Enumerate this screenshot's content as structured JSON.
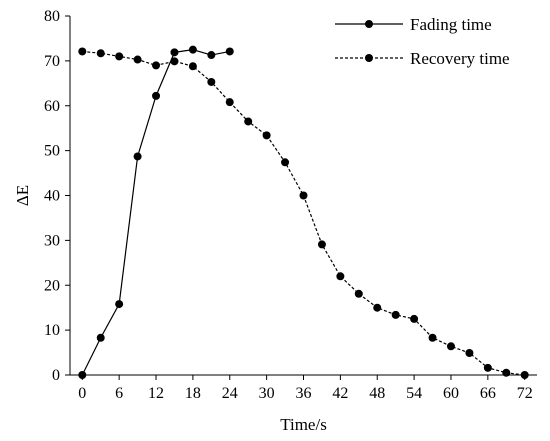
{
  "chart_data": {
    "type": "line",
    "title": "",
    "xlabel": "Time/s",
    "ylabel": "ΔE",
    "xlim": [
      -2,
      74
    ],
    "ylim": [
      0,
      80
    ],
    "xticks": [
      "0",
      "6",
      "12",
      "18",
      "24",
      "30",
      "36",
      "42",
      "48",
      "54",
      "60",
      "66",
      "72"
    ],
    "yticks": [
      "0",
      "10",
      "20",
      "30",
      "40",
      "50",
      "60",
      "70",
      "80"
    ],
    "grid": false,
    "legend_position": "top-right",
    "series": [
      {
        "name": "Fading time",
        "style": "solid",
        "x": [
          0,
          3,
          6,
          9,
          12,
          15,
          18,
          21,
          24
        ],
        "y": [
          0,
          8.3,
          15.8,
          48.7,
          62.2,
          71.9,
          72.5,
          71.3,
          72.1
        ]
      },
      {
        "name": "Recovery time",
        "style": "dashed",
        "x": [
          0,
          3,
          6,
          9,
          12,
          15,
          18,
          21,
          24,
          27,
          30,
          33,
          36,
          39,
          42,
          45,
          48,
          51,
          54,
          57,
          60,
          63,
          66,
          69,
          72
        ],
        "y": [
          72.1,
          71.7,
          71.0,
          70.3,
          69.0,
          69.9,
          68.8,
          65.3,
          60.8,
          56.5,
          53.4,
          47.4,
          40.0,
          29.1,
          22.0,
          18.1,
          15.0,
          13.4,
          12.5,
          8.3,
          6.4,
          4.9,
          1.6,
          0.5,
          0
        ]
      }
    ]
  }
}
